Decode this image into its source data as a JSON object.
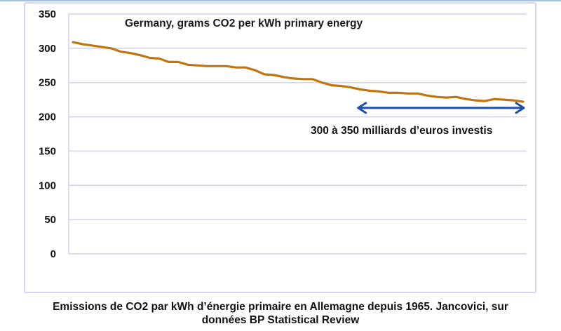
{
  "chart_data": {
    "type": "line",
    "title": "Germany, grams CO2 per kWh primary energy",
    "xlabel": "",
    "ylabel": "",
    "ylim": [
      0,
      350
    ],
    "yticks": [
      0,
      50,
      100,
      150,
      200,
      250,
      300,
      350
    ],
    "grid": true,
    "legend": "none",
    "series": [
      {
        "name": "Germany, grams CO2 per kWh primary energy",
        "color": "#c0750f",
        "values": [
          309,
          306,
          304,
          302,
          300,
          295,
          293,
          290,
          286,
          285,
          280,
          280,
          276,
          275,
          274,
          274,
          274,
          272,
          272,
          268,
          262,
          261,
          258,
          256,
          255,
          255,
          250,
          246,
          245,
          243,
          240,
          238,
          237,
          235,
          235,
          234,
          234,
          231,
          229,
          228,
          229,
          226,
          224,
          223,
          226,
          225,
          224,
          222
        ]
      }
    ],
    "annotations": [
      {
        "type": "double-arrow",
        "color": "#1f4fa8",
        "from_index": 29.7,
        "to_index": 47,
        "y_value": 213,
        "text": "300 à 350  milliards d’euros investis"
      }
    ]
  },
  "caption": {
    "line1": "Emissions de CO2 par kWh d’énergie primaire en Allemagne depuis 1965. Jancovici, sur",
    "line2": "données BP Statistical Review"
  },
  "colors": {
    "gridline": "#d2d2ea",
    "frame": "#d4d4ec",
    "top_rule": "#9ec3e6"
  }
}
